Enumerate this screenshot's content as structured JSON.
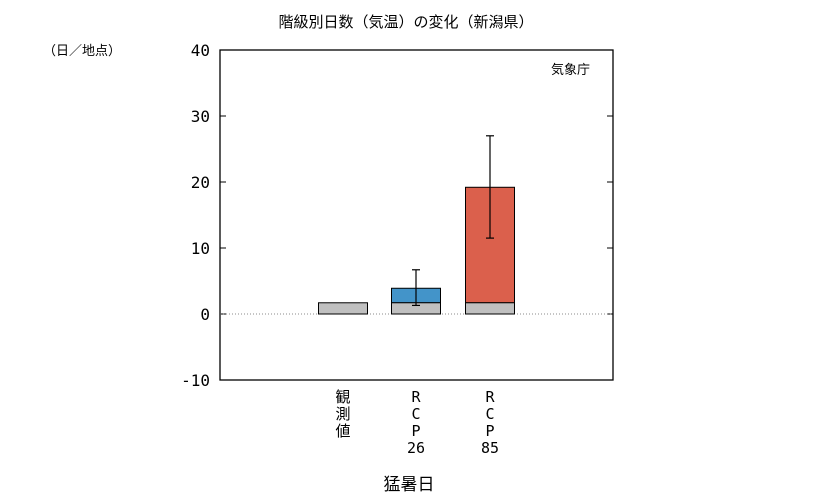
{
  "chart_data": {
    "type": "bar",
    "title": "階級別日数（気温）の変化（新潟県）",
    "ylabel": "（日／地点）",
    "xlabel": "猛暑日",
    "source": "気象庁",
    "ylim": [
      -10,
      40
    ],
    "yticks": [
      -10,
      0,
      10,
      20,
      30,
      40
    ],
    "grid": false,
    "categories": [
      "観測値",
      "RCP26",
      "RCP85"
    ],
    "category_labels": [
      [
        "観",
        "測",
        "値"
      ],
      [
        "R",
        "C",
        "P",
        "26"
      ],
      [
        "R",
        "C",
        "P",
        "85"
      ]
    ],
    "observed": 1.7,
    "future_change": [
      null,
      2.2,
      17.5
    ],
    "future_total": [
      null,
      3.9,
      19.2
    ],
    "error_range": [
      null,
      [
        1.3,
        6.7
      ],
      [
        11.5,
        27.0
      ]
    ],
    "colors": {
      "observed": "#c0c0c0",
      "RCP26": "#4394c9",
      "RCP85": "#db604c"
    }
  }
}
